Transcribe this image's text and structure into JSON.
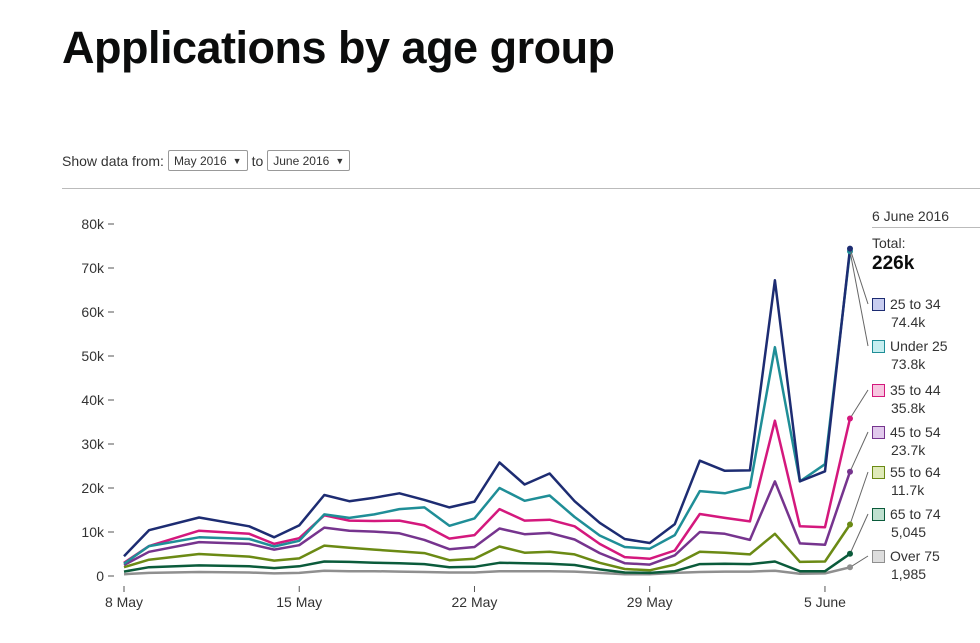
{
  "header": {
    "title": "Applications by age group"
  },
  "controls": {
    "prefix": "Show data from:",
    "from_value": "May 2016",
    "to_label": "to",
    "to_value": "June 2016"
  },
  "legend": {
    "date": "6 June 2016",
    "total_label": "Total:",
    "total_value": "226k",
    "items": [
      {
        "label": "25 to 34",
        "value": "74.4k",
        "color": "#1d2c72",
        "fill": "#c8cdf0"
      },
      {
        "label": "Under 25",
        "value": "73.8k",
        "color": "#1f8e97",
        "fill": "#c6eef0"
      },
      {
        "label": "35 to 44",
        "value": "35.8k",
        "color": "#d4187d",
        "fill": "#f7c6e0"
      },
      {
        "label": "45 to 54",
        "value": "23.7k",
        "color": "#76348e",
        "fill": "#e1c9ec"
      },
      {
        "label": "55 to 64",
        "value": "11.7k",
        "color": "#6b8a14",
        "fill": "#dfeab8"
      },
      {
        "label": "65 to 74",
        "value": "5,045",
        "color": "#0b5b3b",
        "fill": "#bfe0cf"
      },
      {
        "label": "Over 75",
        "value": "1,985",
        "color": "#8f8f8f",
        "fill": "#dddddd"
      }
    ]
  },
  "chart_data": {
    "type": "line",
    "x": [
      "8 May",
      "9 May",
      "11 May",
      "13 May",
      "14 May",
      "15 May",
      "16 May",
      "17 May",
      "18 May",
      "19 May",
      "20 May",
      "21 May",
      "22 May",
      "23 May",
      "24 May",
      "25 May",
      "26 May",
      "27 May",
      "28 May",
      "29 May",
      "30 May",
      "31 May",
      "1 June",
      "2 June",
      "3 June",
      "4 June",
      "5 June",
      "6 June"
    ],
    "xticks": [
      "8 May",
      "15 May",
      "22 May",
      "29 May",
      "5 June"
    ],
    "ylim": [
      0,
      80000
    ],
    "yticks": [
      0,
      10000,
      20000,
      30000,
      40000,
      50000,
      60000,
      70000,
      80000
    ],
    "ytick_labels": [
      "0",
      "10k",
      "20k",
      "30k",
      "40k",
      "50k",
      "60k",
      "70k",
      "80k"
    ],
    "series": [
      {
        "name": "Over 75",
        "color": "#8f8f8f",
        "values": [
          400,
          700,
          900,
          800,
          600,
          700,
          1200,
          1100,
          1100,
          1000,
          900,
          800,
          800,
          1100,
          1100,
          1100,
          1000,
          700,
          400,
          400,
          700,
          900,
          1000,
          1000,
          1200,
          500,
          600,
          1985
        ]
      },
      {
        "name": "65 to 74",
        "color": "#0b5b3b",
        "values": [
          1000,
          2000,
          2400,
          2200,
          1800,
          2200,
          3300,
          3200,
          3000,
          2900,
          2700,
          2000,
          2100,
          3000,
          2900,
          2800,
          2500,
          1500,
          800,
          700,
          1100,
          2700,
          2800,
          2700,
          3300,
          1100,
          1100,
          5045
        ]
      },
      {
        "name": "55 to 64",
        "color": "#6b8a14",
        "values": [
          2000,
          3700,
          5000,
          4400,
          3500,
          4000,
          6900,
          6400,
          6000,
          5600,
          5200,
          3600,
          3900,
          6700,
          5300,
          5500,
          4900,
          3000,
          1600,
          1300,
          2600,
          5500,
          5300,
          4900,
          9600,
          3200,
          3300,
          11700
        ]
      },
      {
        "name": "45 to 54",
        "color": "#76348e",
        "values": [
          2500,
          5500,
          7700,
          7300,
          6000,
          7000,
          11000,
          10300,
          10100,
          9700,
          8200,
          6100,
          6600,
          10800,
          9500,
          9800,
          8300,
          5200,
          2900,
          2600,
          4700,
          10000,
          9600,
          8200,
          21500,
          7400,
          7100,
          23700
        ]
      },
      {
        "name": "35 to 44",
        "color": "#d4187d",
        "values": [
          3000,
          6800,
          10300,
          9600,
          7300,
          8600,
          13800,
          12600,
          12500,
          12600,
          11500,
          8500,
          9300,
          15200,
          12600,
          12800,
          11300,
          7300,
          4300,
          3900,
          5800,
          14100,
          13200,
          12400,
          35300,
          11300,
          11100,
          35800
        ]
      },
      {
        "name": "Under 25",
        "color": "#1f8e97",
        "values": [
          2800,
          6800,
          8800,
          8400,
          6700,
          8000,
          14000,
          13200,
          14000,
          15200,
          15600,
          11400,
          13100,
          20000,
          17100,
          18300,
          13400,
          9200,
          6600,
          6200,
          9300,
          19300,
          18800,
          20200,
          52000,
          21500,
          25400,
          73800
        ]
      },
      {
        "name": "25 to 34",
        "color": "#1d2c72",
        "values": [
          4500,
          10400,
          13300,
          11300,
          8800,
          11500,
          18400,
          17000,
          17800,
          18800,
          17300,
          15600,
          16900,
          25800,
          20800,
          23300,
          17000,
          12100,
          8400,
          7500,
          11800,
          26200,
          23900,
          24000,
          67200,
          21500,
          23800,
          74400
        ]
      }
    ]
  }
}
